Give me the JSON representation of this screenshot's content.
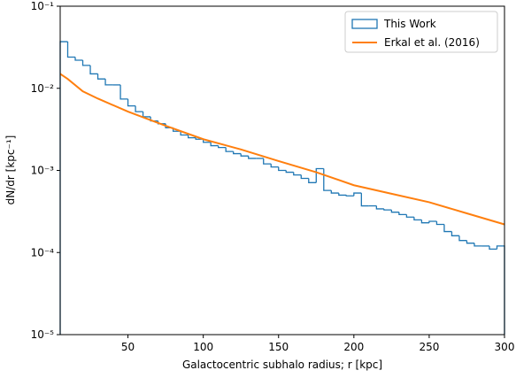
{
  "chart_data": {
    "type": "histogram",
    "xlabel": "Galactocentric subhalo radius; r [kpc]",
    "ylabel": "dN/dr [kpc⁻¹]",
    "xlim": [
      5,
      300
    ],
    "ylim": [
      1e-05,
      0.1
    ],
    "yscale": "log",
    "xticks": [
      50,
      100,
      150,
      200,
      250,
      300
    ],
    "yticks": [
      {
        "value": 0.1,
        "label": "10⁻¹"
      },
      {
        "value": 0.01,
        "label": "10⁻²"
      },
      {
        "value": 0.001,
        "label": "10⁻³"
      },
      {
        "value": 0.0001,
        "label": "10⁻⁴"
      },
      {
        "value": 1e-05,
        "label": "10⁻⁵"
      }
    ],
    "legend": "upper right",
    "series": [
      {
        "name": "This Work",
        "type": "histogram",
        "color": "#1f77b4",
        "bins": [
          5,
          10,
          15,
          20,
          25,
          30,
          35,
          40,
          45,
          50,
          55,
          60,
          65,
          70,
          75,
          80,
          85,
          90,
          95,
          100,
          105,
          110,
          115,
          120,
          125,
          130,
          135,
          140,
          145,
          150,
          155,
          160,
          165,
          170,
          175,
          180,
          185,
          190,
          195,
          200,
          205,
          210,
          215,
          220,
          225,
          230,
          235,
          240,
          245,
          250,
          255,
          260,
          265,
          270,
          275,
          280,
          285,
          290,
          295,
          300
        ],
        "values": [
          0.037,
          0.024,
          0.022,
          0.019,
          0.015,
          0.013,
          0.011,
          0.011,
          0.0074,
          0.0061,
          0.0052,
          0.0045,
          0.004,
          0.0037,
          0.0033,
          0.003,
          0.0027,
          0.0025,
          0.0024,
          0.0022,
          0.002,
          0.0019,
          0.0017,
          0.0016,
          0.0015,
          0.0014,
          0.0014,
          0.0012,
          0.0011,
          0.001,
          0.00095,
          0.00088,
          0.0008,
          0.00071,
          0.00105,
          0.00057,
          0.00053,
          0.0005,
          0.00049,
          0.00053,
          0.00037,
          0.00037,
          0.00034,
          0.00033,
          0.00031,
          0.00029,
          0.00027,
          0.00025,
          0.00023,
          0.00024,
          0.00022,
          0.00018,
          0.00016,
          0.00014,
          0.00013,
          0.00012,
          0.00012,
          0.00011,
          0.00012
        ]
      },
      {
        "name": "Erkal et al. (2016)",
        "type": "line",
        "color": "#ff7f0e",
        "x": [
          5,
          10,
          20,
          30,
          50,
          75,
          100,
          125,
          150,
          175,
          200,
          225,
          250,
          275,
          300
        ],
        "values": [
          0.015,
          0.013,
          0.0092,
          0.0075,
          0.0052,
          0.0035,
          0.0024,
          0.0018,
          0.0013,
          0.00095,
          0.00066,
          0.00052,
          0.00041,
          0.0003,
          0.00022
        ]
      }
    ]
  }
}
